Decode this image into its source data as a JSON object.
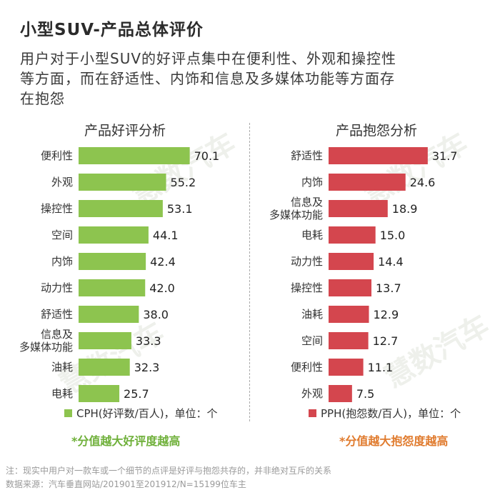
{
  "title": "小型SUV-产品总体评价",
  "subtitle_lines": [
    "用户对于小型SUV的好评点集中在便利性、外观和操控性",
    "等方面，而在舒适性、内饰和信息及多媒体功能等方面存",
    "在抱怨"
  ],
  "watermark": "慧数汽车",
  "colors": {
    "good": "#8dc44f",
    "bad": "#d4464e",
    "good_note": "#6fb03a",
    "bad_note": "#e07b2e"
  },
  "chart_data": [
    {
      "type": "bar",
      "orientation": "horizontal",
      "title": "产品好评分析",
      "categories": [
        "便利性",
        "外观",
        "操控性",
        "空间",
        "内饰",
        "动力性",
        "舒适性",
        "信息及\n多媒体功能",
        "油耗",
        "电耗"
      ],
      "values": [
        70.1,
        55.2,
        53.1,
        44.1,
        42.4,
        42.0,
        38.0,
        33.3,
        32.3,
        25.7
      ],
      "value_labels": [
        "70.1",
        "55.2",
        "53.1",
        "44.1",
        "42.4",
        "42.0",
        "38.0",
        "33.3",
        "32.3",
        "25.7"
      ],
      "legend": "CPH(好评数/百人)，单位：个",
      "note": "*分值越大好评度越高",
      "color": "#8dc44f"
    },
    {
      "type": "bar",
      "orientation": "horizontal",
      "title": "产品抱怨分析",
      "categories": [
        "舒适性",
        "内饰",
        "信息及\n多媒体功能",
        "电耗",
        "动力性",
        "操控性",
        "油耗",
        "空间",
        "便利性",
        "外观"
      ],
      "values": [
        31.7,
        24.6,
        18.9,
        15.0,
        14.4,
        13.7,
        12.9,
        12.7,
        11.1,
        7.5
      ],
      "value_labels": [
        "31.7",
        "24.6",
        "18.9",
        "15.0",
        "14.4",
        "13.7",
        "12.9",
        "12.7",
        "11.1",
        "7.5"
      ],
      "legend": "PPH(抱怨数/百人)，单位：个",
      "note": "*分值越大抱怨度越高",
      "color": "#d4464e"
    }
  ],
  "footnotes": [
    "注：现实中用户对一款车或一个细节的点评是好评与抱怨共存的，并非绝对互斥的关系",
    "数据来源：汽车垂直网站/201901至201912/N=15199位车主"
  ]
}
